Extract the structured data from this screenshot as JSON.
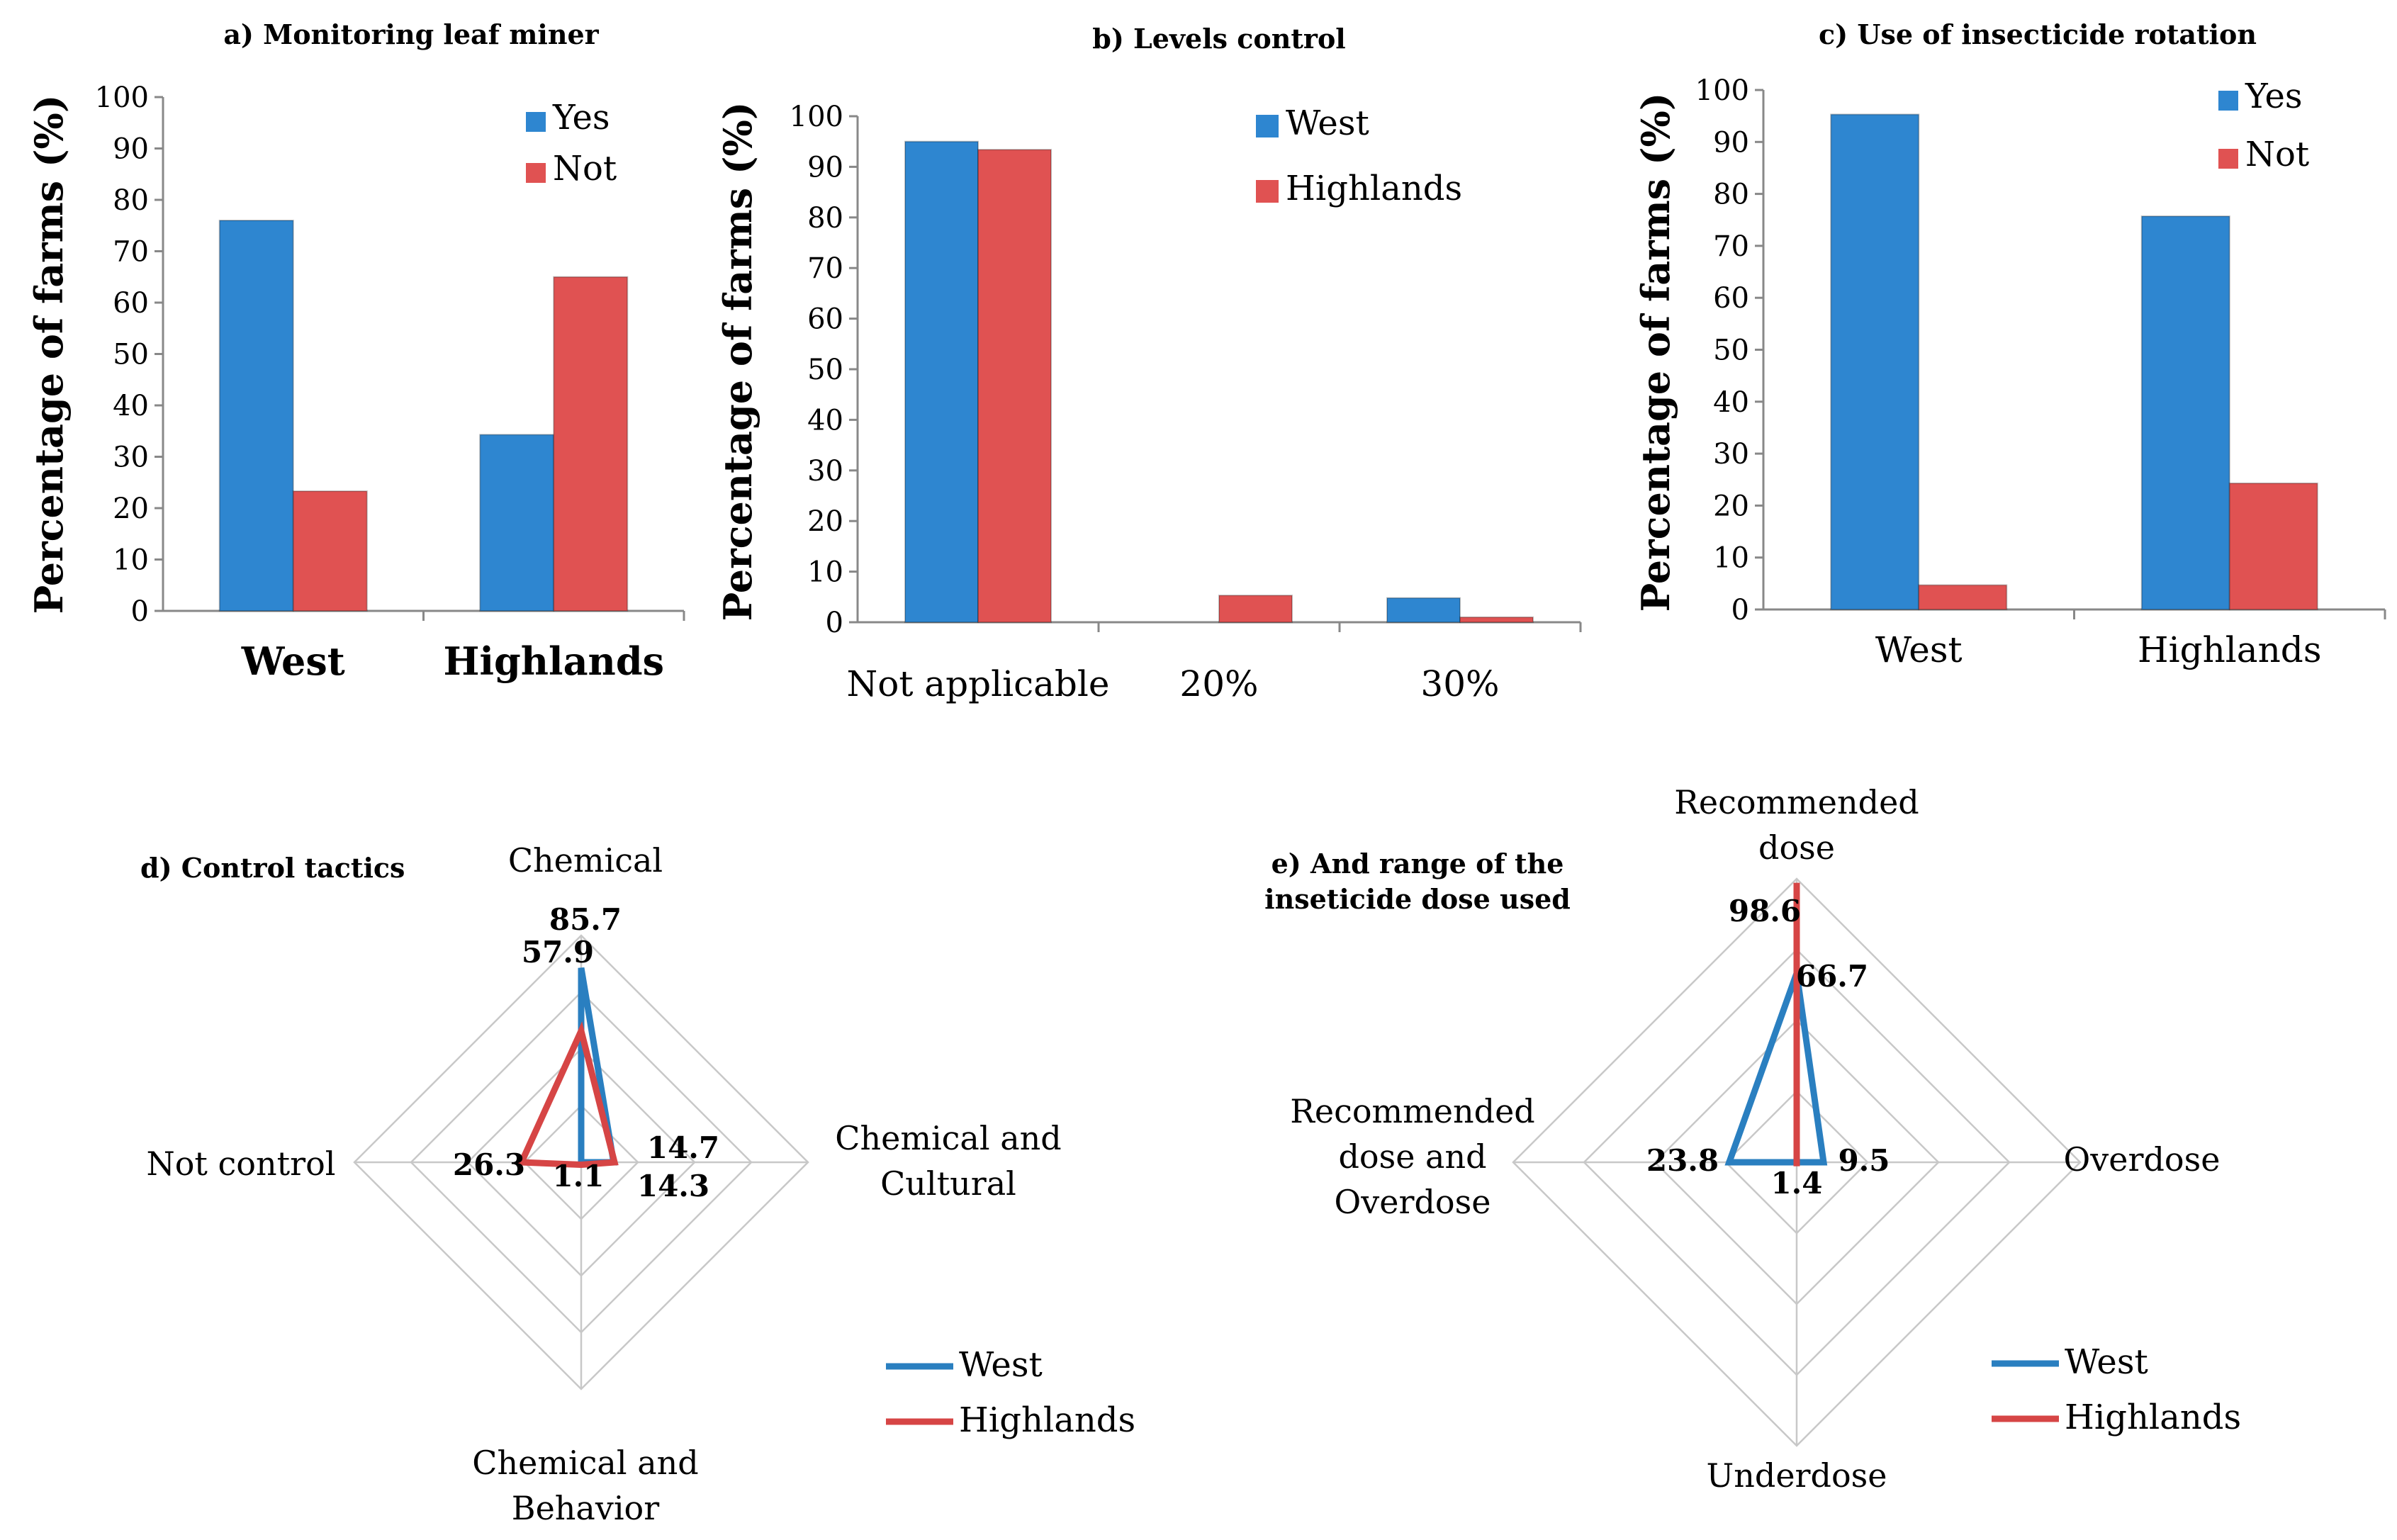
{
  "colors": {
    "west": "#2E86D0",
    "highlands": "#E05252",
    "west_line": "#2A7FC0",
    "highlands_line": "#D64545"
  },
  "chart_data": [
    {
      "id": "a",
      "type": "bar",
      "title": "a) Monitoring leaf miner",
      "ylabel": "Percentage of  farms (%)",
      "ylim": [
        0,
        100
      ],
      "yticks": [
        "0",
        "10",
        "20",
        "30",
        "40",
        "50",
        "60",
        "70",
        "80",
        "90",
        "100"
      ],
      "categories": [
        "West",
        "Highlands"
      ],
      "series": [
        {
          "name": "Yes",
          "color_key": "west",
          "values": [
            76,
            34.3
          ]
        },
        {
          "name": "Not",
          "color_key": "highlands",
          "values": [
            23.3,
            65
          ]
        }
      ]
    },
    {
      "id": "b",
      "type": "bar",
      "title": "b) Levels control",
      "ylabel": "Percentage of  farms (%)",
      "ylim": [
        0,
        100
      ],
      "yticks": [
        "0",
        "10",
        "20",
        "30",
        "40",
        "50",
        "60",
        "70",
        "80",
        "90",
        "100"
      ],
      "categories": [
        "Not applicable",
        "20%",
        "30%"
      ],
      "series": [
        {
          "name": "West",
          "color_key": "west",
          "values": [
            95,
            0,
            4.8
          ]
        },
        {
          "name": "Highlands",
          "color_key": "highlands",
          "values": [
            93.4,
            5.3,
            1
          ]
        }
      ]
    },
    {
      "id": "c",
      "type": "bar",
      "title": "c) Use of insecticide rotation",
      "ylabel": "Percentage of  farms (%)",
      "ylim": [
        0,
        100
      ],
      "yticks": [
        "0",
        "10",
        "20",
        "30",
        "40",
        "50",
        "60",
        "70",
        "80",
        "90",
        "100"
      ],
      "categories": [
        "West",
        "Highlands"
      ],
      "series": [
        {
          "name": "Yes",
          "color_key": "west",
          "values": [
            95.3,
            75.7
          ]
        },
        {
          "name": "Not",
          "color_key": "highlands",
          "values": [
            4.7,
            24.3
          ]
        }
      ]
    },
    {
      "id": "d",
      "type": "radar",
      "title": "d) Control tactics",
      "rlim": [
        0,
        100
      ],
      "axes": [
        {
          "label_lines": [
            "Chemical"
          ]
        },
        {
          "label_lines": [
            "Chemical and",
            "Cultural"
          ]
        },
        {
          "label_lines": [
            "Chemical and",
            "Behavior"
          ]
        },
        {
          "label_lines": [
            "Not control"
          ]
        }
      ],
      "series": [
        {
          "name": "West",
          "color_key": "west_line",
          "values": [
            85.7,
            14.3,
            0,
            0
          ],
          "labels": [
            "85.7",
            "14.3",
            "",
            ""
          ]
        },
        {
          "name": "Highlands",
          "color_key": "highlands_line",
          "values": [
            57.9,
            14.7,
            1.1,
            26.3
          ],
          "labels": [
            "57.9",
            "14.7",
            "1.1",
            "26.3"
          ]
        }
      ]
    },
    {
      "id": "e",
      "type": "radar",
      "title": "e) And range of the inseticide dose used",
      "title_lines": [
        "e) And range of the",
        "inseticide dose used"
      ],
      "rlim": [
        0,
        100
      ],
      "axes": [
        {
          "label_lines": [
            "Recommended",
            "dose"
          ]
        },
        {
          "label_lines": [
            "Overdose"
          ]
        },
        {
          "label_lines": [
            "Underdose"
          ]
        },
        {
          "label_lines": [
            "Recommended",
            "dose and",
            "Overdose"
          ]
        }
      ],
      "series": [
        {
          "name": "West",
          "color_key": "west_line",
          "values": [
            66.7,
            9.5,
            0,
            23.8
          ],
          "labels": [
            "66.7",
            "9.5",
            "",
            "23.8"
          ]
        },
        {
          "name": "Highlands",
          "color_key": "highlands_line",
          "values": [
            98.6,
            0,
            1.4,
            0
          ],
          "labels": [
            "98.6",
            "",
            "1.4",
            ""
          ]
        }
      ]
    }
  ]
}
